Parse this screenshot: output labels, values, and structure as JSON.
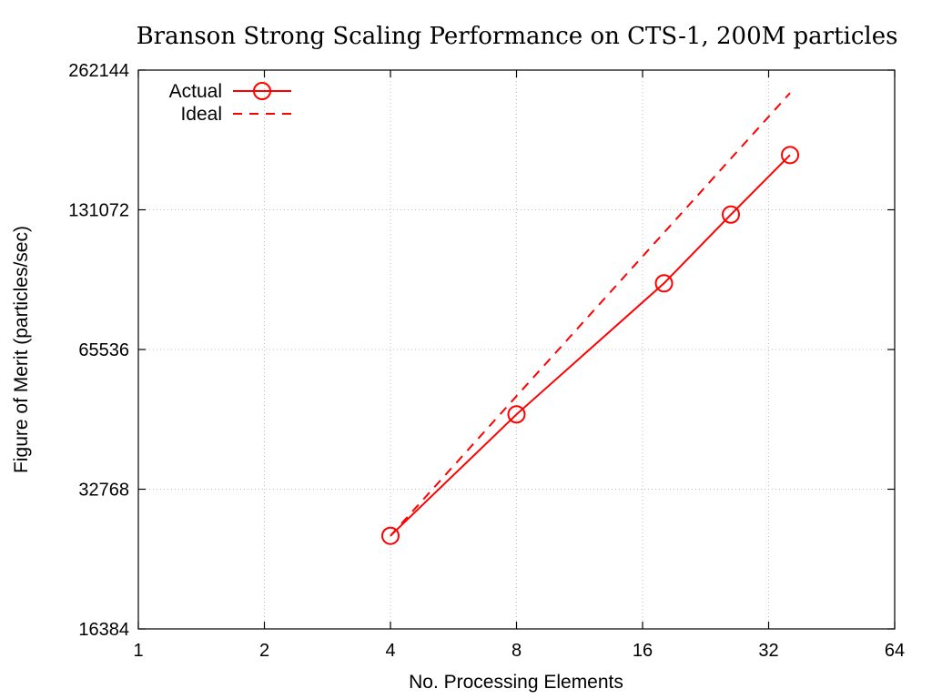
{
  "chart_data": {
    "type": "line",
    "title": "Branson Strong Scaling Performance on CTS-1, 200M particles",
    "xlabel": "No. Processing Elements",
    "ylabel": "Figure of Merit (particles/sec)",
    "xscale": "log2",
    "yscale": "log2",
    "xlim": [
      1,
      64
    ],
    "ylim": [
      16384,
      262144
    ],
    "xticks": [
      1,
      2,
      4,
      8,
      16,
      32,
      64
    ],
    "yticks": [
      16384,
      32768,
      65536,
      131072,
      262144
    ],
    "grid": true,
    "legend_position": "top-left",
    "series": [
      {
        "name": "Actual",
        "style": "solid",
        "marker": "circle",
        "color": "#ff0000",
        "x": [
          4,
          8,
          18,
          26,
          36
        ],
        "y": [
          26000,
          47500,
          91000,
          128000,
          172000
        ]
      },
      {
        "name": "Ideal",
        "style": "dashed",
        "marker": "none",
        "color": "#ff0000",
        "x": [
          4,
          36
        ],
        "y": [
          26000,
          234000
        ]
      }
    ]
  }
}
